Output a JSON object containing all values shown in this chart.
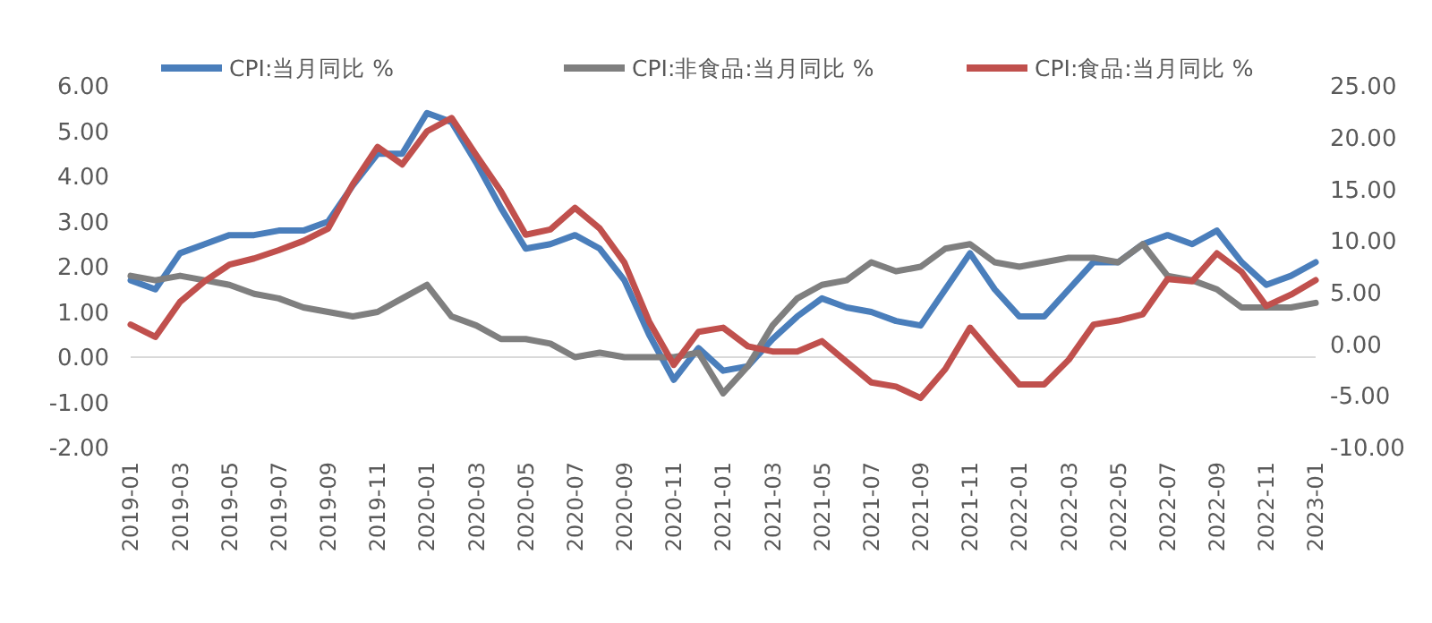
{
  "chart_data": {
    "type": "line",
    "categories": [
      "2019-01",
      null,
      "2019-03",
      null,
      "2019-05",
      null,
      "2019-07",
      null,
      "2019-09",
      null,
      "2019-11",
      null,
      "2020-01",
      null,
      "2020-03",
      null,
      "2020-05",
      null,
      "2020-07",
      null,
      "2020-09",
      null,
      "2020-11",
      null,
      "2021-01",
      null,
      "2021-03",
      null,
      "2021-05",
      null,
      "2021-07",
      null,
      "2021-09",
      null,
      "2021-11",
      null,
      "2022-01",
      null,
      "2022-03",
      null,
      "2022-05",
      null,
      "2022-07",
      null,
      "2022-09",
      null,
      "2022-11",
      null,
      "2023-01"
    ],
    "series": [
      {
        "name": "CPI:当月同比 %",
        "color": "#4a7ebb",
        "values": [
          1.7,
          1.5,
          2.3,
          2.5,
          2.7,
          2.7,
          2.8,
          2.8,
          3.0,
          3.8,
          4.5,
          4.5,
          5.4,
          5.2,
          4.3,
          3.3,
          2.4,
          2.5,
          2.7,
          2.4,
          1.7,
          0.5,
          -0.5,
          0.2,
          -0.3,
          -0.2,
          0.4,
          0.9,
          1.3,
          1.1,
          1.0,
          0.8,
          0.7,
          1.5,
          2.3,
          1.5,
          0.9,
          0.9,
          1.5,
          2.1,
          2.1,
          2.5,
          2.7,
          2.5,
          2.8,
          2.1,
          1.6,
          1.8,
          2.1
        ]
      },
      {
        "name": "CPI:非食品:当月同比 %",
        "color": "#7f7f7f",
        "values": [
          1.8,
          1.7,
          1.8,
          1.7,
          1.6,
          1.4,
          1.3,
          1.1,
          1.0,
          0.9,
          1.0,
          1.3,
          1.6,
          0.9,
          0.7,
          0.4,
          0.4,
          0.3,
          0.0,
          0.1,
          0.0,
          0.0,
          0.0,
          0.1,
          -0.8,
          -0.2,
          0.7,
          1.3,
          1.6,
          1.7,
          2.1,
          1.9,
          2.0,
          2.4,
          2.5,
          2.1,
          2.0,
          2.1,
          2.2,
          2.2,
          2.1,
          2.5,
          1.8,
          1.7,
          1.5,
          1.1,
          1.1,
          1.1,
          1.2
        ]
      },
      {
        "name": "CPI:食品:当月同比 %",
        "color": "#c0504d",
        "axis": "y2",
        "values": [
          1.9,
          0.7,
          4.1,
          6.1,
          7.7,
          8.3,
          9.1,
          10.0,
          11.2,
          15.5,
          19.1,
          17.4,
          20.6,
          21.9,
          18.3,
          14.8,
          10.6,
          11.1,
          13.2,
          11.2,
          7.9,
          2.2,
          -2.0,
          1.2,
          1.6,
          -0.2,
          -0.7,
          -0.7,
          0.3,
          -1.7,
          -3.7,
          -4.1,
          -5.2,
          -2.4,
          1.6,
          -1.2,
          -3.9,
          -3.9,
          -1.5,
          1.9,
          2.3,
          2.9,
          6.3,
          6.1,
          8.8,
          7.0,
          3.7,
          4.8,
          6.2
        ]
      }
    ],
    "ylim": [
      -2,
      6
    ],
    "yticks": [
      {
        "value": -2,
        "label": "-2.00"
      },
      {
        "value": -1,
        "label": "-1.00"
      },
      {
        "value": 0,
        "label": "0.00"
      },
      {
        "value": 1,
        "label": "1.00"
      },
      {
        "value": 2,
        "label": "2.00"
      },
      {
        "value": 3,
        "label": "3.00"
      },
      {
        "value": 4,
        "label": "4.00"
      },
      {
        "value": 5,
        "label": "5.00"
      },
      {
        "value": 6,
        "label": "6.00"
      }
    ],
    "y2lim": [
      -10,
      25
    ],
    "y2ticks": [
      {
        "value": -10,
        "label": "-10.00"
      },
      {
        "value": -5,
        "label": "-5.00"
      },
      {
        "value": 0,
        "label": "0.00"
      },
      {
        "value": 5,
        "label": "5.00"
      },
      {
        "value": 10,
        "label": "10.00"
      },
      {
        "value": 15,
        "label": "15.00"
      },
      {
        "value": 20,
        "label": "20.00"
      },
      {
        "value": 25,
        "label": "25.00"
      }
    ],
    "legend": "top",
    "marker": "none",
    "line_style": "solid"
  }
}
